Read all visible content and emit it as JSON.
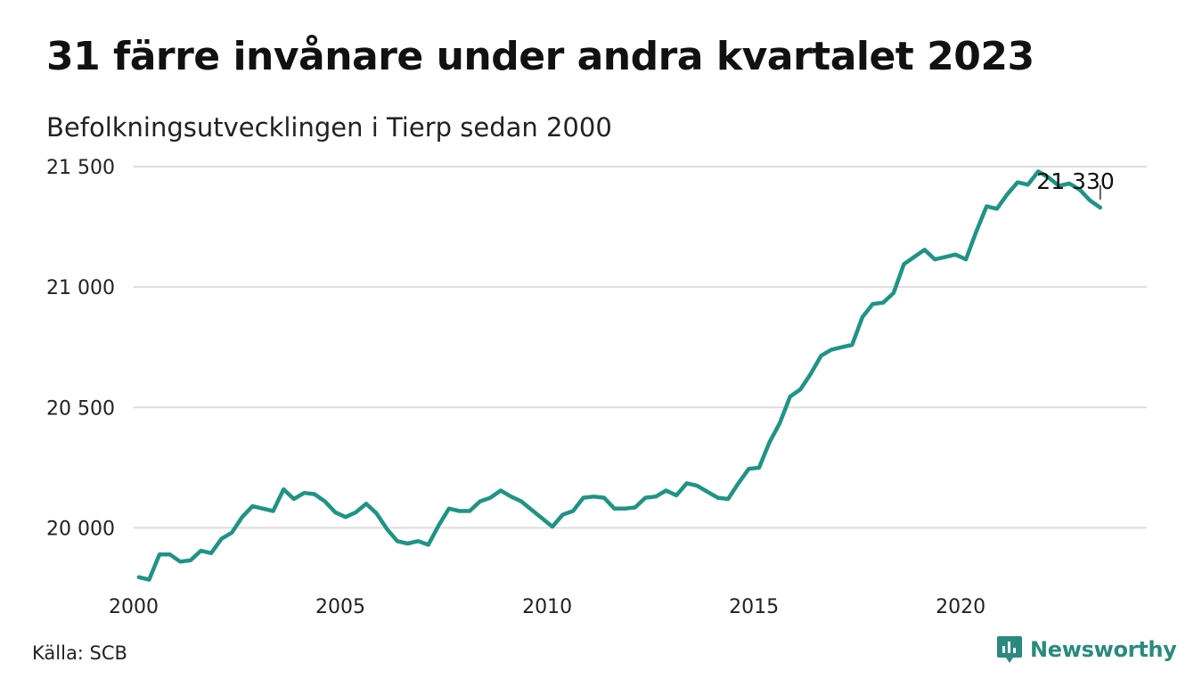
{
  "title": "31 färre invånare under andra kvartalet 2023",
  "subtitle": "Befolkningsutvecklingen i Tierp sedan 2000",
  "source": "Källa: SCB",
  "brand": {
    "name": "Newsworthy",
    "icon": "newsworthy-logo-icon"
  },
  "colors": {
    "line": "#1f9484",
    "grid": "#dddddd",
    "brand": "#2b8a7e"
  },
  "chart_data": {
    "type": "line",
    "title": "31 färre invånare under andra kvartalet 2023",
    "subtitle": "Befolkningsutvecklingen i Tierp sedan 2000",
    "xlabel": "",
    "ylabel": "",
    "xlim": [
      2000.0,
      2024.5
    ],
    "ylim": [
      19750,
      21600
    ],
    "grid": "horizontal",
    "x_ticks": [
      2000,
      2005,
      2010,
      2015,
      2020
    ],
    "x_tick_labels": [
      "2000",
      "2005",
      "2010",
      "2015",
      "2020"
    ],
    "y_ticks": [
      20000,
      20500,
      21000,
      21500
    ],
    "y_tick_labels": [
      "20 000",
      "20 500",
      "21 000",
      "21 500"
    ],
    "last_value_label": "21 330",
    "series": [
      {
        "x": [
          2000.125,
          2000.375,
          2000.625,
          2000.875,
          2001.125,
          2001.375,
          2001.625,
          2001.875,
          2002.125,
          2002.375,
          2002.625,
          2002.875,
          2003.125,
          2003.375,
          2003.625,
          2003.875,
          2004.125,
          2004.375,
          2004.625,
          2004.875,
          2005.125,
          2005.375,
          2005.625,
          2005.875,
          2006.125,
          2006.375,
          2006.625,
          2006.875,
          2007.125,
          2007.375,
          2007.625,
          2007.875,
          2008.125,
          2008.375,
          2008.625,
          2008.875,
          2009.125,
          2009.375,
          2009.625,
          2009.875,
          2010.125,
          2010.375,
          2010.625,
          2010.875,
          2011.125,
          2011.375,
          2011.625,
          2011.875,
          2012.125,
          2012.375,
          2012.625,
          2012.875,
          2013.125,
          2013.375,
          2013.625,
          2013.875,
          2014.125,
          2014.375,
          2014.625,
          2014.875,
          2015.125,
          2015.375,
          2015.625,
          2015.875,
          2016.125,
          2016.375,
          2016.625,
          2016.875,
          2017.125,
          2017.375,
          2017.625,
          2017.875,
          2018.125,
          2018.375,
          2018.625,
          2018.875,
          2019.125,
          2019.375,
          2019.625,
          2019.875,
          2020.125,
          2020.375,
          2020.625,
          2020.875,
          2021.125,
          2021.375,
          2021.625,
          2021.875,
          2022.125,
          2022.375,
          2022.625,
          2022.875,
          2023.125,
          2023.375
        ],
        "values": [
          19795,
          19785,
          19890,
          19890,
          19860,
          19865,
          19905,
          19895,
          19955,
          19980,
          20045,
          20090,
          20080,
          20070,
          20160,
          20120,
          20145,
          20140,
          20110,
          20065,
          20045,
          20065,
          20100,
          20060,
          19995,
          19945,
          19935,
          19945,
          19930,
          20010,
          20080,
          20070,
          20070,
          20110,
          20125,
          20155,
          20130,
          20110,
          20075,
          20040,
          20005,
          20055,
          20070,
          20125,
          20130,
          20125,
          20080,
          20080,
          20085,
          20125,
          20130,
          20155,
          20135,
          20185,
          20175,
          20150,
          20125,
          20120,
          20185,
          20245,
          20250,
          20355,
          20435,
          20545,
          20575,
          20640,
          20715,
          20740,
          20750,
          20760,
          20875,
          20930,
          20935,
          20975,
          21095,
          21125,
          21155,
          21115,
          21125,
          21135,
          21115,
          21230,
          21335,
          21325,
          21385,
          21435,
          21425,
          21480,
          21455,
          21420,
          21430,
          21405,
          21360,
          21330
        ]
      }
    ]
  }
}
